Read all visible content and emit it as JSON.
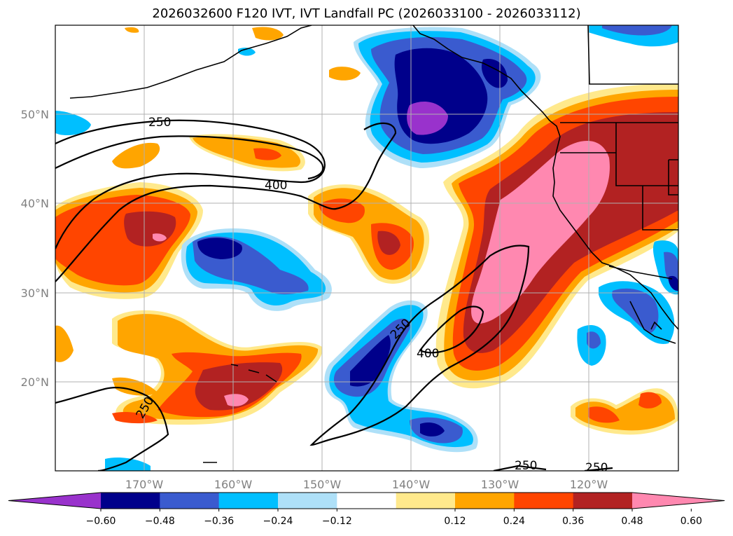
{
  "title": "2026032600 F120 IVT, IVT Landfall PC (2026033100 - 2026033112)",
  "map": {
    "lon_labels": [
      "170°W",
      "160°W",
      "150°W",
      "140°W",
      "130°W",
      "120°W"
    ],
    "lat_labels": [
      "50°N",
      "40°N",
      "30°N",
      "20°N"
    ],
    "contour_labels": [
      "250",
      "400",
      "250",
      "400",
      "250",
      "250",
      "250"
    ]
  },
  "colorbar": {
    "ticks": [
      "−0.60",
      "−0.48",
      "−0.36",
      "−0.24",
      "−0.12",
      "0.12",
      "0.24",
      "0.36",
      "0.48",
      "0.60"
    ],
    "colors": [
      "#9932cc",
      "#00008b",
      "#3a5bcf",
      "#00bfff",
      "#aee0f8",
      "#ffffff",
      "#ffe98c",
      "#ffa500",
      "#ff4500",
      "#b22222",
      "#ff88b0"
    ]
  }
}
